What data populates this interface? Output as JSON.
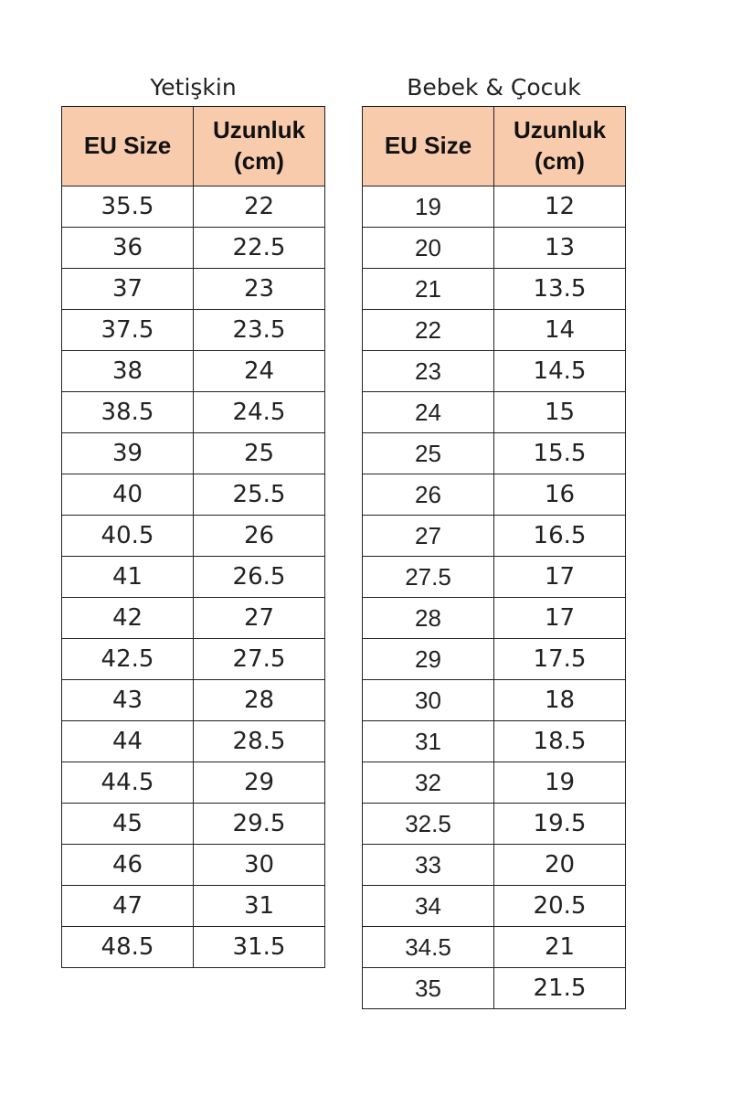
{
  "adult": {
    "title": "Yetişkin",
    "headers": [
      "EU Size",
      "Uzunluk (cm)"
    ],
    "rows": [
      [
        "35.5",
        "22"
      ],
      [
        "36",
        "22.5"
      ],
      [
        "37",
        "23"
      ],
      [
        "37.5",
        "23.5"
      ],
      [
        "38",
        "24"
      ],
      [
        "38.5",
        "24.5"
      ],
      [
        "39",
        "25"
      ],
      [
        "40",
        "25.5"
      ],
      [
        "40.5",
        "26"
      ],
      [
        "41",
        "26.5"
      ],
      [
        "42",
        "27"
      ],
      [
        "42.5",
        "27.5"
      ],
      [
        "43",
        "28"
      ],
      [
        "44",
        "28.5"
      ],
      [
        "44.5",
        "29"
      ],
      [
        "45",
        "29.5"
      ],
      [
        "46",
        "30"
      ],
      [
        "47",
        "31"
      ],
      [
        "48.5",
        "31.5"
      ]
    ]
  },
  "kids": {
    "title": "Bebek & Çocuk",
    "headers": [
      "EU Size",
      "Uzunluk (cm)"
    ],
    "rows": [
      [
        "19",
        "12"
      ],
      [
        "20",
        "13"
      ],
      [
        "21",
        "13.5"
      ],
      [
        "22",
        "14"
      ],
      [
        "23",
        "14.5"
      ],
      [
        "24",
        "15"
      ],
      [
        "25",
        "15.5"
      ],
      [
        "26",
        "16"
      ],
      [
        "27",
        "16.5"
      ],
      [
        "27.5",
        "17"
      ],
      [
        "28",
        "17"
      ],
      [
        "29",
        "17.5"
      ],
      [
        "30",
        "18"
      ],
      [
        "31",
        "18.5"
      ],
      [
        "32",
        "19"
      ],
      [
        "32.5",
        "19.5"
      ],
      [
        "33",
        "20"
      ],
      [
        "34",
        "20.5"
      ],
      [
        "34.5",
        "21"
      ],
      [
        "35",
        "21.5"
      ]
    ]
  },
  "colors": {
    "header_bg": "#F8CBAD",
    "border": "#222222"
  }
}
